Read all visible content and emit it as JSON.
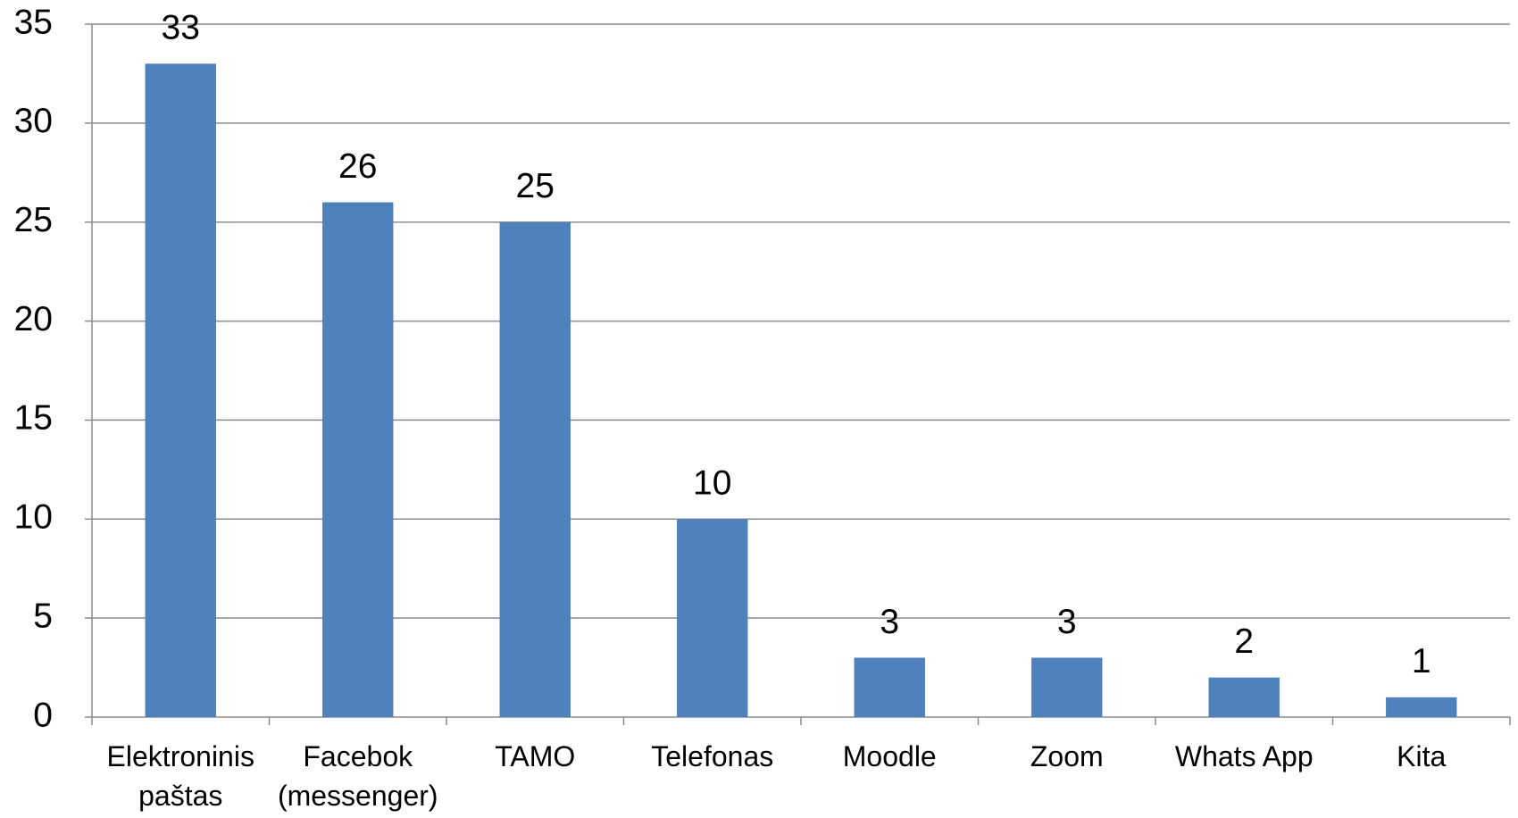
{
  "chart_data": {
    "type": "bar",
    "categories": [
      "Elektroninis paštas",
      "Facebok (messenger)",
      "TAMO",
      "Telefonas",
      "Moodle",
      "Zoom",
      "Whats App",
      "Kita"
    ],
    "values": [
      33,
      26,
      25,
      10,
      3,
      3,
      2,
      1
    ],
    "color": "#4f81bd",
    "ylim": [
      0,
      35
    ],
    "yticks": [
      0,
      5,
      10,
      15,
      20,
      25,
      30,
      35
    ],
    "grid": true
  }
}
